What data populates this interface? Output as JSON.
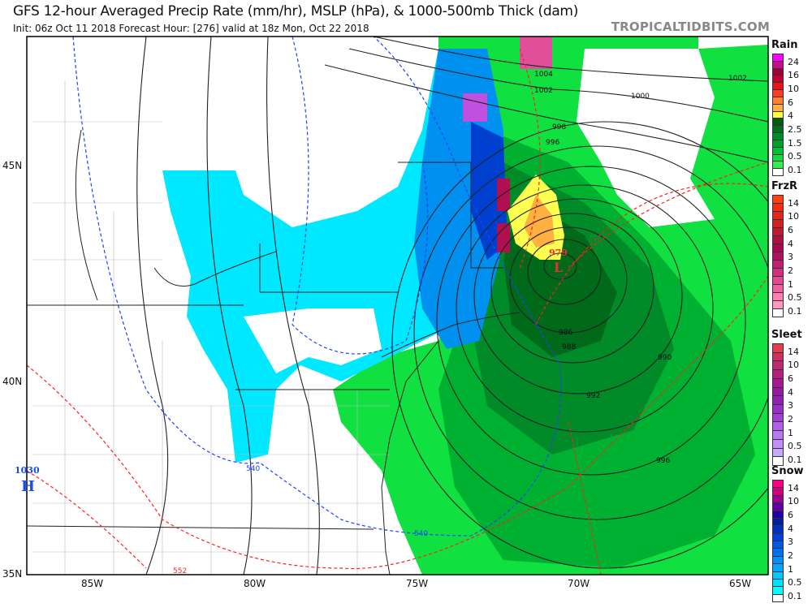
{
  "header": {
    "title": "GFS 12-hour Averaged Precip Rate (mm/hr), MSLP (hPa), & 1000-500mb Thick (dam)",
    "subtitle": "Init: 06z Oct 11 2018   Forecast Hour: [276]   valid at 18z Mon, Oct 22 2018",
    "watermark": "TROPICALTIDBITS.COM"
  },
  "axes": {
    "lat_labels": [
      "45N",
      "40N",
      "35N"
    ],
    "lon_labels": [
      "85W",
      "80W",
      "75W",
      "70W",
      "65W"
    ]
  },
  "pressure_centers": [
    {
      "type": "L",
      "value": "979",
      "color": "#e8303a"
    },
    {
      "type": "H",
      "value": "1030",
      "color": "#1a4fe0"
    }
  ],
  "isobar_labels": [
    "1004",
    "1002",
    "1000",
    "1002",
    "998",
    "996",
    "986",
    "988",
    "990",
    "992",
    "996"
  ],
  "thickness_labels": [
    "540",
    "540",
    "552"
  ],
  "legends": [
    {
      "name": "Rain",
      "labels": [
        "24",
        "16",
        "10",
        "6",
        "4",
        "2.5",
        "1.5",
        "0.5",
        "0.1"
      ],
      "colors": [
        "#ff00ff",
        "#c0108e",
        "#a0003c",
        "#c80030",
        "#e01818",
        "#ff3a20",
        "#ff8030",
        "#ffb040",
        "#ffff40",
        "#005a10",
        "#007020",
        "#008a28",
        "#00a030",
        "#00c038",
        "#10dc40",
        "#30f050",
        "#ffffff"
      ]
    },
    {
      "name": "FrzR",
      "labels": [
        "14",
        "10",
        "6",
        "4",
        "3",
        "2",
        "1",
        "0.5",
        "0.1"
      ],
      "colors": [
        "#ff4010",
        "#f03010",
        "#e02818",
        "#d02020",
        "#c01830",
        "#b01040",
        "#a80850",
        "#b01060",
        "#c02070",
        "#d03080",
        "#e04890",
        "#f060a0",
        "#ff80b0",
        "#ff98c0",
        "#ffffff"
      ]
    },
    {
      "name": "Sleet",
      "labels": [
        "14",
        "10",
        "6",
        "4",
        "3",
        "2",
        "1",
        "0.5",
        "0.1"
      ],
      "colors": [
        "#e04050",
        "#d03060",
        "#c02870",
        "#b82080",
        "#a81890",
        "#9818a0",
        "#9020b0",
        "#9830c8",
        "#a040d8",
        "#b060e8",
        "#b878f0",
        "#c090f8",
        "#c8a8ff",
        "#ffffff"
      ]
    },
    {
      "name": "Snow",
      "labels": [
        "14",
        "10",
        "6",
        "4",
        "3",
        "2",
        "1",
        "0.5",
        "0.1"
      ],
      "colors": [
        "#ff0080",
        "#d00080",
        "#a00090",
        "#6000a0",
        "#2000a0",
        "#0020a0",
        "#0030c0",
        "#0040d8",
        "#0058e8",
        "#0070f0",
        "#0090f8",
        "#00a8ff",
        "#00c8ff",
        "#00e0ff",
        "#00ffff",
        "#ffffff"
      ]
    }
  ],
  "colors": {
    "snow_light": "#00ffff",
    "snow_mid": "#0090f0",
    "rain_light": "#10e040",
    "rain_dark": "#006a1a",
    "thick_cold": "#2040ff",
    "thick_warm": "#ff2020"
  }
}
